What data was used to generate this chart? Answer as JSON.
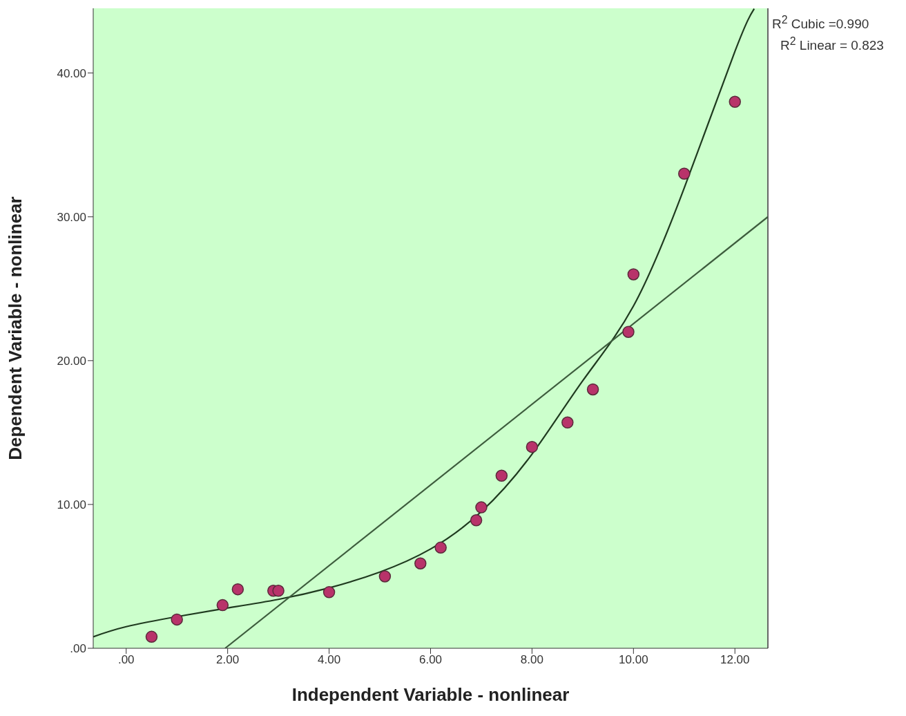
{
  "chart_data": {
    "type": "scatter",
    "xlabel": "Independent Variable - nonlinear",
    "ylabel": "Dependent Variable - nonlinear",
    "xlim": [
      -0.65,
      12.65
    ],
    "ylim": [
      0,
      44.5
    ],
    "xticks": [
      {
        "value": 0,
        "label": ".00"
      },
      {
        "value": 2,
        "label": "2.00"
      },
      {
        "value": 4,
        "label": "4.00"
      },
      {
        "value": 6,
        "label": "6.00"
      },
      {
        "value": 8,
        "label": "8.00"
      },
      {
        "value": 10,
        "label": "10.00"
      },
      {
        "value": 12,
        "label": "12.00"
      }
    ],
    "yticks": [
      {
        "value": 0,
        "label": ".00"
      },
      {
        "value": 10,
        "label": "10.00"
      },
      {
        "value": 20,
        "label": "20.00"
      },
      {
        "value": 30,
        "label": "30.00"
      },
      {
        "value": 40,
        "label": "40.00"
      }
    ],
    "grid": false,
    "annotations": [
      "R$^{2}$ Cubic =0.990",
      "R$^{2}$ Linear = 0.823"
    ],
    "series": [
      {
        "marker": "circle",
        "color": "#b8336a",
        "x": [
          0.5,
          1.0,
          1.9,
          2.2,
          2.9,
          3.0,
          4.0,
          5.1,
          5.8,
          6.2,
          6.9,
          7.0,
          7.4,
          8.0,
          8.7,
          9.2,
          9.9,
          10.0,
          11.0,
          12.0
        ],
        "values": [
          0.8,
          2.0,
          3.0,
          4.1,
          4.0,
          4.0,
          3.9,
          5.0,
          5.9,
          7.0,
          8.9,
          9.8,
          12.0,
          14.0,
          15.7,
          18.0,
          22.0,
          26.0,
          33.0,
          38.0
        ]
      },
      {
        "type": "line",
        "marker": "none",
        "color": "#1f3a1f",
        "x": [
          -0.65,
          0,
          1,
          2,
          3,
          4,
          5,
          6,
          7,
          8,
          9,
          10,
          11,
          12,
          12.38
        ],
        "values": [
          0.8,
          1.5,
          2.2,
          2.8,
          3.4,
          4.2,
          5.3,
          6.9,
          9.5,
          13.5,
          18.6,
          23.8,
          32.0,
          41.5,
          44.47
        ]
      },
      {
        "type": "line",
        "marker": "none",
        "color": "#3d5c3d",
        "x": [
          1.95,
          12.65
        ],
        "values": [
          0,
          30.0
        ]
      }
    ]
  }
}
